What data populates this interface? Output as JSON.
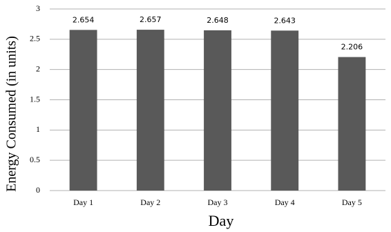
{
  "chart_data": {
    "type": "bar",
    "x_label": "Day",
    "y_label": "Energy Consumed (in units)",
    "categories": [
      "Day 1",
      "Day 2",
      "Day 3",
      "Day 4",
      "Day 5"
    ],
    "values": [
      2.654,
      2.657,
      2.648,
      2.643,
      2.206
    ],
    "color": "#595959",
    "ylim": [
      0,
      3
    ],
    "yticks": [
      0,
      0.5,
      1,
      1.5,
      2,
      2.5,
      3
    ],
    "grid": true
  }
}
